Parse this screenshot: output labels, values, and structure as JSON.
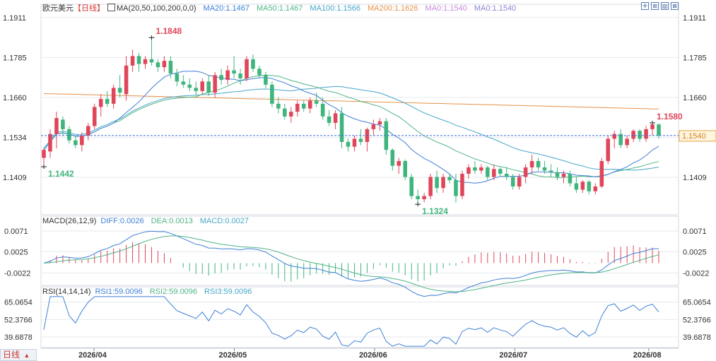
{
  "header": {
    "symbol": "欧元美元",
    "period": "【日线】",
    "ma_label": "MA(20,50,100,200,0,0)",
    "ma_values": [
      "MA20:1.1467",
      "MA50:1.1467",
      "MA100:1.1566",
      "MA200:1.1626",
      "MA0:1.1540",
      "MA0:1.1540"
    ],
    "ma_colors": [
      "#3d7fd6",
      "#4fb486",
      "#45a6c9",
      "#e6914a",
      "#c98ad8",
      "#8e7fd0"
    ]
  },
  "macd_header": {
    "label": "MACD(26,12,9)",
    "values": [
      "DIFF:0.0026",
      "DEA:0.0013",
      "MACD:0.0027"
    ],
    "colors": [
      "#3d7fd6",
      "#4fb486",
      "#45a6c9"
    ]
  },
  "rsi_header": {
    "label": "RSI(14,14,14)",
    "values": [
      "RSI1:59.0096",
      "RSI2:59.0096",
      "RSI3:59.0096"
    ],
    "colors": [
      "#3d7fd6",
      "#4fb486",
      "#45a6c9"
    ]
  },
  "toolbar": {
    "buttons": [
      {
        "name": "crosshair-icon",
        "glyph": "✛"
      },
      {
        "name": "zoom-in-icon",
        "glyph": "⊞"
      },
      {
        "name": "chart-type-icon",
        "glyph": "▥"
      },
      {
        "name": "close-icon",
        "glyph": "⊠"
      }
    ]
  },
  "period_button": {
    "label": "日线",
    "arrow": "▲"
  },
  "colors": {
    "up": "#e0465a",
    "down": "#3fb57d",
    "grid": "#e6e9ee",
    "price_line": "#3a6fd0"
  },
  "chart_data": {
    "type": "candlestick",
    "price_axis": {
      "ticks": [
        1.1911,
        1.1785,
        1.166,
        1.1534,
        1.1409
      ],
      "tick_labels": [
        "1.1911",
        "1.1785",
        "1.1660",
        "1.1534",
        "1.1409"
      ]
    },
    "x_labels": [
      "2026/04",
      "2026/05",
      "2026/06",
      "2026/07",
      "2026/08"
    ],
    "current_price": "1.1540",
    "annotations": [
      {
        "label": "1.1848",
        "value": 1.1848,
        "kind": "high"
      },
      {
        "label": "1.1442",
        "value": 1.1442,
        "kind": "low"
      },
      {
        "label": "1.1324",
        "value": 1.1324,
        "kind": "low"
      },
      {
        "label": "1.1580",
        "value": 1.158,
        "kind": "high"
      }
    ],
    "candles": [
      {
        "o": 1.147,
        "h": 1.15,
        "l": 1.1442,
        "c": 1.1495
      },
      {
        "o": 1.149,
        "h": 1.156,
        "l": 1.147,
        "c": 1.1545
      },
      {
        "o": 1.1545,
        "h": 1.1615,
        "l": 1.15,
        "c": 1.1595
      },
      {
        "o": 1.159,
        "h": 1.16,
        "l": 1.154,
        "c": 1.156
      },
      {
        "o": 1.156,
        "h": 1.157,
        "l": 1.1515,
        "c": 1.1525
      },
      {
        "o": 1.1525,
        "h": 1.154,
        "l": 1.15,
        "c": 1.151
      },
      {
        "o": 1.151,
        "h": 1.155,
        "l": 1.149,
        "c": 1.154
      },
      {
        "o": 1.154,
        "h": 1.158,
        "l": 1.1525,
        "c": 1.157
      },
      {
        "o": 1.157,
        "h": 1.164,
        "l": 1.156,
        "c": 1.163
      },
      {
        "o": 1.163,
        "h": 1.167,
        "l": 1.16,
        "c": 1.1655
      },
      {
        "o": 1.1655,
        "h": 1.168,
        "l": 1.163,
        "c": 1.164
      },
      {
        "o": 1.164,
        "h": 1.17,
        "l": 1.1625,
        "c": 1.169
      },
      {
        "o": 1.169,
        "h": 1.173,
        "l": 1.166,
        "c": 1.1675
      },
      {
        "o": 1.167,
        "h": 1.179,
        "l": 1.165,
        "c": 1.176
      },
      {
        "o": 1.176,
        "h": 1.181,
        "l": 1.174,
        "c": 1.179
      },
      {
        "o": 1.179,
        "h": 1.18,
        "l": 1.174,
        "c": 1.1765
      },
      {
        "o": 1.1765,
        "h": 1.179,
        "l": 1.175,
        "c": 1.178
      },
      {
        "o": 1.178,
        "h": 1.1848,
        "l": 1.176,
        "c": 1.177
      },
      {
        "o": 1.177,
        "h": 1.178,
        "l": 1.174,
        "c": 1.1755
      },
      {
        "o": 1.1755,
        "h": 1.179,
        "l": 1.174,
        "c": 1.1775
      },
      {
        "o": 1.1775,
        "h": 1.179,
        "l": 1.172,
        "c": 1.1735
      },
      {
        "o": 1.1735,
        "h": 1.175,
        "l": 1.1695,
        "c": 1.171
      },
      {
        "o": 1.171,
        "h": 1.173,
        "l": 1.169,
        "c": 1.17
      },
      {
        "o": 1.17,
        "h": 1.172,
        "l": 1.168,
        "c": 1.169
      },
      {
        "o": 1.169,
        "h": 1.171,
        "l": 1.1665,
        "c": 1.168
      },
      {
        "o": 1.168,
        "h": 1.172,
        "l": 1.167,
        "c": 1.171
      },
      {
        "o": 1.171,
        "h": 1.173,
        "l": 1.1665,
        "c": 1.1675
      },
      {
        "o": 1.1675,
        "h": 1.174,
        "l": 1.166,
        "c": 1.173
      },
      {
        "o": 1.173,
        "h": 1.175,
        "l": 1.17,
        "c": 1.1715
      },
      {
        "o": 1.1715,
        "h": 1.176,
        "l": 1.17,
        "c": 1.1745
      },
      {
        "o": 1.1745,
        "h": 1.179,
        "l": 1.172,
        "c": 1.1735
      },
      {
        "o": 1.1735,
        "h": 1.175,
        "l": 1.17,
        "c": 1.172
      },
      {
        "o": 1.172,
        "h": 1.179,
        "l": 1.171,
        "c": 1.178
      },
      {
        "o": 1.178,
        "h": 1.1795,
        "l": 1.174,
        "c": 1.175
      },
      {
        "o": 1.175,
        "h": 1.176,
        "l": 1.172,
        "c": 1.173
      },
      {
        "o": 1.173,
        "h": 1.174,
        "l": 1.169,
        "c": 1.17
      },
      {
        "o": 1.17,
        "h": 1.171,
        "l": 1.163,
        "c": 1.164
      },
      {
        "o": 1.164,
        "h": 1.166,
        "l": 1.161,
        "c": 1.1625
      },
      {
        "o": 1.1625,
        "h": 1.164,
        "l": 1.159,
        "c": 1.16
      },
      {
        "o": 1.16,
        "h": 1.163,
        "l": 1.158,
        "c": 1.1615
      },
      {
        "o": 1.1615,
        "h": 1.165,
        "l": 1.16,
        "c": 1.164
      },
      {
        "o": 1.164,
        "h": 1.165,
        "l": 1.1615,
        "c": 1.1625
      },
      {
        "o": 1.1625,
        "h": 1.166,
        "l": 1.161,
        "c": 1.165
      },
      {
        "o": 1.165,
        "h": 1.1675,
        "l": 1.163,
        "c": 1.164
      },
      {
        "o": 1.164,
        "h": 1.166,
        "l": 1.159,
        "c": 1.16
      },
      {
        "o": 1.16,
        "h": 1.162,
        "l": 1.157,
        "c": 1.158
      },
      {
        "o": 1.158,
        "h": 1.162,
        "l": 1.156,
        "c": 1.161
      },
      {
        "o": 1.161,
        "h": 1.163,
        "l": 1.15,
        "c": 1.152
      },
      {
        "o": 1.152,
        "h": 1.153,
        "l": 1.149,
        "c": 1.1505
      },
      {
        "o": 1.1505,
        "h": 1.154,
        "l": 1.149,
        "c": 1.153
      },
      {
        "o": 1.153,
        "h": 1.156,
        "l": 1.151,
        "c": 1.152
      },
      {
        "o": 1.152,
        "h": 1.1565,
        "l": 1.149,
        "c": 1.156
      },
      {
        "o": 1.156,
        "h": 1.159,
        "l": 1.154,
        "c": 1.1575
      },
      {
        "o": 1.1575,
        "h": 1.1595,
        "l": 1.1555,
        "c": 1.1585
      },
      {
        "o": 1.1585,
        "h": 1.1595,
        "l": 1.148,
        "c": 1.1495
      },
      {
        "o": 1.1495,
        "h": 1.15,
        "l": 1.143,
        "c": 1.1445
      },
      {
        "o": 1.1445,
        "h": 1.147,
        "l": 1.142,
        "c": 1.146
      },
      {
        "o": 1.146,
        "h": 1.1465,
        "l": 1.14,
        "c": 1.141
      },
      {
        "o": 1.141,
        "h": 1.142,
        "l": 1.134,
        "c": 1.135
      },
      {
        "o": 1.135,
        "h": 1.137,
        "l": 1.1324,
        "c": 1.134
      },
      {
        "o": 1.134,
        "h": 1.136,
        "l": 1.133,
        "c": 1.135
      },
      {
        "o": 1.135,
        "h": 1.142,
        "l": 1.134,
        "c": 1.141
      },
      {
        "o": 1.141,
        "h": 1.143,
        "l": 1.136,
        "c": 1.1375
      },
      {
        "o": 1.1375,
        "h": 1.142,
        "l": 1.136,
        "c": 1.141
      },
      {
        "o": 1.141,
        "h": 1.142,
        "l": 1.139,
        "c": 1.14
      },
      {
        "o": 1.14,
        "h": 1.142,
        "l": 1.133,
        "c": 1.135
      },
      {
        "o": 1.135,
        "h": 1.143,
        "l": 1.134,
        "c": 1.142
      },
      {
        "o": 1.142,
        "h": 1.145,
        "l": 1.1405,
        "c": 1.144
      },
      {
        "o": 1.144,
        "h": 1.146,
        "l": 1.142,
        "c": 1.143
      },
      {
        "o": 1.143,
        "h": 1.145,
        "l": 1.142,
        "c": 1.144
      },
      {
        "o": 1.144,
        "h": 1.1445,
        "l": 1.14,
        "c": 1.141
      },
      {
        "o": 1.141,
        "h": 1.145,
        "l": 1.14,
        "c": 1.1435
      },
      {
        "o": 1.1435,
        "h": 1.144,
        "l": 1.141,
        "c": 1.142
      },
      {
        "o": 1.142,
        "h": 1.144,
        "l": 1.14,
        "c": 1.141
      },
      {
        "o": 1.141,
        "h": 1.142,
        "l": 1.137,
        "c": 1.138
      },
      {
        "o": 1.138,
        "h": 1.142,
        "l": 1.137,
        "c": 1.141
      },
      {
        "o": 1.141,
        "h": 1.145,
        "l": 1.139,
        "c": 1.144
      },
      {
        "o": 1.144,
        "h": 1.148,
        "l": 1.142,
        "c": 1.146
      },
      {
        "o": 1.146,
        "h": 1.147,
        "l": 1.143,
        "c": 1.144
      },
      {
        "o": 1.144,
        "h": 1.146,
        "l": 1.142,
        "c": 1.143
      },
      {
        "o": 1.143,
        "h": 1.145,
        "l": 1.141,
        "c": 1.1425
      },
      {
        "o": 1.1425,
        "h": 1.144,
        "l": 1.14,
        "c": 1.141
      },
      {
        "o": 1.141,
        "h": 1.143,
        "l": 1.139,
        "c": 1.142
      },
      {
        "o": 1.142,
        "h": 1.143,
        "l": 1.138,
        "c": 1.139
      },
      {
        "o": 1.139,
        "h": 1.141,
        "l": 1.136,
        "c": 1.137
      },
      {
        "o": 1.137,
        "h": 1.14,
        "l": 1.136,
        "c": 1.1395
      },
      {
        "o": 1.1395,
        "h": 1.14,
        "l": 1.1355,
        "c": 1.1365
      },
      {
        "o": 1.1365,
        "h": 1.139,
        "l": 1.1355,
        "c": 1.138
      },
      {
        "o": 1.138,
        "h": 1.147,
        "l": 1.1375,
        "c": 1.146
      },
      {
        "o": 1.146,
        "h": 1.154,
        "l": 1.145,
        "c": 1.153
      },
      {
        "o": 1.153,
        "h": 1.1555,
        "l": 1.15,
        "c": 1.1545
      },
      {
        "o": 1.1545,
        "h": 1.156,
        "l": 1.15,
        "c": 1.151
      },
      {
        "o": 1.151,
        "h": 1.154,
        "l": 1.15,
        "c": 1.153
      },
      {
        "o": 1.153,
        "h": 1.156,
        "l": 1.152,
        "c": 1.1555
      },
      {
        "o": 1.1555,
        "h": 1.156,
        "l": 1.152,
        "c": 1.153
      },
      {
        "o": 1.153,
        "h": 1.157,
        "l": 1.152,
        "c": 1.156
      },
      {
        "o": 1.156,
        "h": 1.158,
        "l": 1.154,
        "c": 1.1575
      },
      {
        "o": 1.1575,
        "h": 1.1578,
        "l": 1.153,
        "c": 1.154
      }
    ],
    "macd_axis": {
      "ticks": [
        0.0071,
        0.0025,
        -0.0022
      ],
      "tick_labels": [
        "0.0071",
        "0.0025",
        "-0.0022"
      ]
    },
    "rsi_axis": {
      "ticks": [
        65.0654,
        52.3766,
        39.6878
      ],
      "tick_labels": [
        "65.0654",
        "52.3766",
        "39.6878"
      ]
    }
  }
}
